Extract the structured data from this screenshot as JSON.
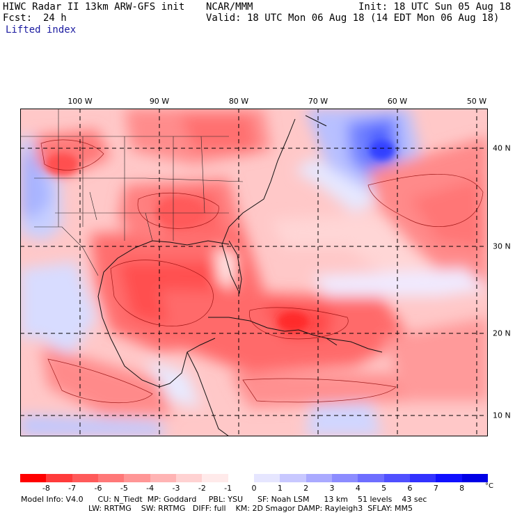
{
  "header": {
    "title": "HIWC Radar II 13km ARW-GFS init",
    "org": "NCAR/MMM",
    "init": "Init: 18 UTC Sun 05 Aug 18",
    "fcst_label": "Fcst:",
    "fcst_value": "24 h",
    "valid": "Valid: 18 UTC Mon 06 Aug 18 (14 EDT Mon 06 Aug 18)",
    "field": "Lifted index"
  },
  "map": {
    "lon_labels": [
      "100 W",
      "90 W",
      "80 W",
      "70 W",
      "60 W",
      "50 W"
    ],
    "lat_labels": [
      "40 N",
      "30 N",
      "20 N",
      "10 N"
    ]
  },
  "colorbar": {
    "ticks": [
      "-8",
      "-7",
      "-6",
      "-5",
      "-4",
      "-3",
      "-2",
      "-1",
      "0",
      "1",
      "2",
      "3",
      "4",
      "5",
      "6",
      "7",
      "8"
    ],
    "unit": "°C",
    "colors": [
      "#ff0000",
      "#ff3b3b",
      "#ff5a5a",
      "#ff7878",
      "#ff9696",
      "#ffb4b4",
      "#ffd2d2",
      "#ffeaea",
      "#ffffff",
      "#e6e6ff",
      "#c8c8ff",
      "#aaaaff",
      "#8c8cff",
      "#6e6eff",
      "#5050ff",
      "#3232ff",
      "#1010ff",
      "#0000e6"
    ]
  },
  "footer": {
    "line1": "Model Info: V4.0      CU: N_Tiedt  MP: Goddard     PBL: YSU      SF: Noah LSM      13 km    51 levels    43 sec",
    "line2": "LW: RRTMG    SW: RRTMG   DIFF: full    KM: 2D Smagor DAMP: Rayleigh3  SFLAY: MM5"
  }
}
